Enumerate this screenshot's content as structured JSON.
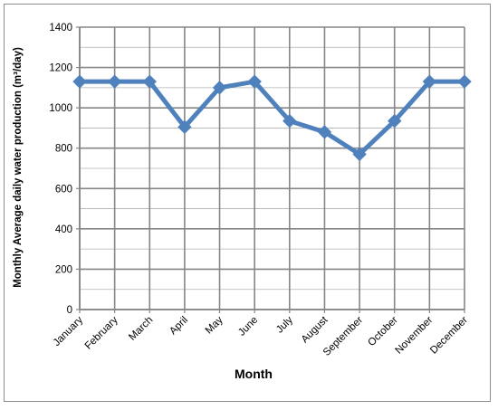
{
  "chart_data": {
    "type": "line",
    "categories": [
      "January",
      "February",
      "March",
      "April",
      "May",
      "June",
      "July",
      "August",
      "September",
      "October",
      "November",
      "December"
    ],
    "series": [
      {
        "values": [
          1130,
          1130,
          1130,
          905,
          1100,
          1130,
          935,
          880,
          770,
          935,
          1130,
          1130
        ]
      }
    ],
    "xlabel": "Month",
    "ylabel": "Monthly Average daily water production (m³/day)",
    "ylim": [
      0,
      1400
    ],
    "yticks": [
      "0",
      "200",
      "400",
      "600",
      "800",
      "1000",
      "1200",
      "1400"
    ],
    "grid": true,
    "line_color": "#4f81bd"
  }
}
